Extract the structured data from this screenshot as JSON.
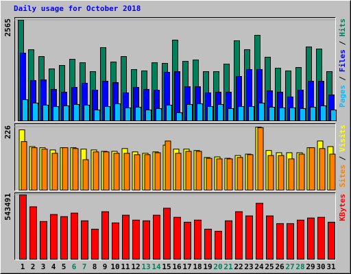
{
  "chart_data": [
    {
      "type": "bar",
      "title": "Daily usage for October 2018",
      "title_color": "#0000ff",
      "categories": [
        "1",
        "2",
        "3",
        "4",
        "5",
        "6",
        "7",
        "8",
        "9",
        "10",
        "11",
        "12",
        "13",
        "14",
        "15",
        "16",
        "17",
        "18",
        "19",
        "20",
        "21",
        "22",
        "23",
        "24",
        "25",
        "26",
        "27",
        "28",
        "29",
        "30",
        "31"
      ],
      "category_colors": [
        "#000000",
        "#000000",
        "#000000",
        "#000000",
        "#000000",
        "#00805c",
        "#00805c",
        "#000000",
        "#000000",
        "#000000",
        "#000000",
        "#000000",
        "#00805c",
        "#00805c",
        "#000000",
        "#000000",
        "#000000",
        "#000000",
        "#000000",
        "#00805c",
        "#00805c",
        "#000000",
        "#000000",
        "#000000",
        "#000000",
        "#000000",
        "#00805c",
        "#00805c",
        "#000000",
        "#000000",
        "#000000"
      ],
      "legend_separator": "/",
      "ylim": [
        0,
        2565
      ],
      "yticks": [
        2565
      ],
      "series": [
        {
          "name": "Hits",
          "color": "#00805c",
          "values": [
            2565,
            1815,
            1640,
            1326,
            1413,
            1570,
            1483,
            1256,
            1867,
            1501,
            1640,
            1309,
            1274,
            1483,
            1466,
            2059,
            1518,
            1553,
            1256,
            1256,
            1448,
            2042,
            1815,
            2181,
            1623,
            1344,
            1274,
            1361,
            1885,
            1832,
            1256
          ]
        },
        {
          "name": "Files",
          "color": "#0000ff",
          "values": [
            1727,
            1030,
            1047,
            803,
            733,
            855,
            960,
            785,
            1012,
            977,
            715,
            855,
            803,
            785,
            1239,
            1256,
            872,
            872,
            715,
            733,
            733,
            1134,
            1309,
            1309,
            768,
            733,
            611,
            785,
            1012,
            1012,
            663
          ]
        },
        {
          "name": "Pages",
          "color": "#00c0ff",
          "values": [
            541,
            454,
            401,
            366,
            384,
            419,
            401,
            279,
            366,
            436,
            332,
            349,
            279,
            314,
            401,
            209,
            419,
            436,
            366,
            419,
            314,
            366,
            366,
            454,
            349,
            332,
            332,
            314,
            349,
            384,
            279
          ]
        }
      ]
    },
    {
      "type": "bar",
      "legend_separator": "/",
      "ylim": [
        0,
        226
      ],
      "yticks": [
        226
      ],
      "series": [
        {
          "name": "Visits",
          "color": "#ffff00",
          "values": [
            216,
            156,
            152,
            144,
            152,
            152,
            147,
            144,
            139,
            139,
            149,
            137,
            132,
            137,
            161,
            147,
            147,
            142,
            117,
            119,
            114,
            124,
            129,
            226,
            142,
            134,
            134,
            134,
            152,
            176,
            156
          ]
        },
        {
          "name": "Sites",
          "color": "#ff8000",
          "values": [
            174,
            152,
            147,
            132,
            152,
            149,
            109,
            137,
            137,
            132,
            132,
            127,
            127,
            134,
            176,
            132,
            139,
            139,
            114,
            112,
            112,
            117,
            127,
            224,
            124,
            124,
            112,
            129,
            152,
            149,
            129
          ]
        }
      ]
    },
    {
      "type": "bar",
      "legend_separator": "/",
      "ylim": [
        0,
        543491
      ],
      "yticks": [
        543491
      ],
      "series": [
        {
          "name": "KBytes",
          "color": "#ff0000",
          "values": [
            543491,
            443063,
            319005,
            378080,
            360358,
            389895,
            324913,
            254023,
            401710,
            307190,
            372173,
            330820,
            324913,
            372173,
            431248,
            354450,
            313098,
            330820,
            254023,
            236300,
            324913,
            401710,
            366265,
            472600,
            366265,
            301283,
            301283,
            330820,
            348543,
            354450,
            313098
          ]
        }
      ]
    }
  ]
}
